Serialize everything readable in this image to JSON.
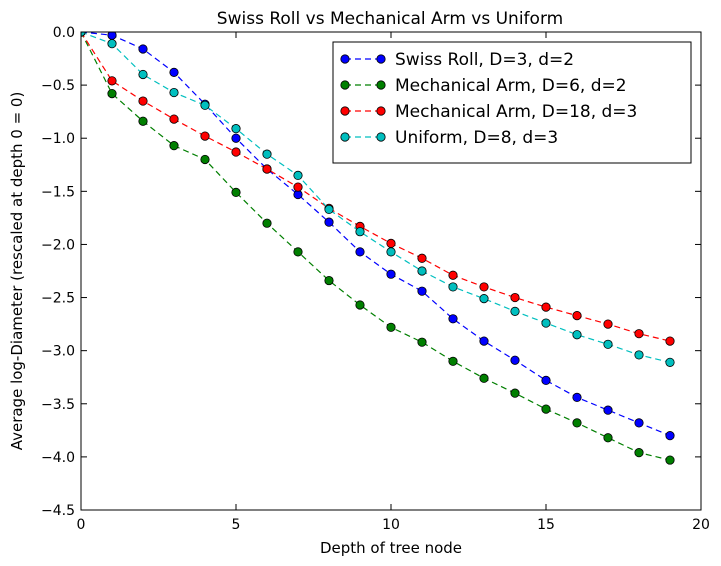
{
  "chart_data": {
    "type": "line",
    "title": "Swiss Roll vs Mechanical Arm vs Uniform",
    "xlabel": "Depth of tree node",
    "ylabel": "Average log-Diameter (rescaled at depth 0 = 0)",
    "xlim": [
      0,
      20
    ],
    "ylim": [
      -4.5,
      0.0
    ],
    "xticks": [
      0,
      5,
      10,
      15,
      20
    ],
    "yticks": [
      0.0,
      -0.5,
      -1.0,
      -1.5,
      -2.0,
      -2.5,
      -3.0,
      -3.5,
      -4.0,
      -4.5
    ],
    "xtick_labels": [
      "0",
      "5",
      "10",
      "15",
      "20"
    ],
    "ytick_labels": [
      "0.0",
      "−0.5",
      "−1.0",
      "−1.5",
      "−2.0",
      "−2.5",
      "−3.0",
      "−3.5",
      "−4.0",
      "−4.5"
    ],
    "grid": false,
    "legend_position": "top-right",
    "x": [
      0,
      1,
      2,
      3,
      4,
      5,
      6,
      7,
      8,
      9,
      10,
      11,
      12,
      13,
      14,
      15,
      16,
      17,
      18,
      19
    ],
    "series": [
      {
        "name": "Swiss Roll, D=3, d=2",
        "color": "#0000ff",
        "values": [
          0.0,
          -0.03,
          -0.16,
          -0.38,
          -0.68,
          -1.0,
          -1.29,
          -1.53,
          -1.79,
          -2.07,
          -2.28,
          -2.44,
          -2.7,
          -2.91,
          -3.09,
          -3.28,
          -3.44,
          -3.56,
          -3.68,
          -3.8
        ]
      },
      {
        "name": "Mechanical Arm, D=6, d=2",
        "color": "#007f00",
        "values": [
          0.0,
          -0.58,
          -0.84,
          -1.07,
          -1.2,
          -1.51,
          -1.8,
          -2.07,
          -2.34,
          -2.57,
          -2.78,
          -2.92,
          -3.1,
          -3.26,
          -3.4,
          -3.55,
          -3.68,
          -3.82,
          -3.96,
          -4.03
        ]
      },
      {
        "name": "Mechanical Arm, D=18, d=3",
        "color": "#ff0000",
        "values": [
          0.0,
          -0.46,
          -0.65,
          -0.82,
          -0.98,
          -1.13,
          -1.29,
          -1.46,
          -1.66,
          -1.83,
          -1.99,
          -2.13,
          -2.29,
          -2.4,
          -2.5,
          -2.59,
          -2.67,
          -2.75,
          -2.84,
          -2.91
        ]
      },
      {
        "name": "Uniform, D=8, d=3",
        "color": "#00bfbf",
        "values": [
          0.0,
          -0.11,
          -0.4,
          -0.57,
          -0.69,
          -0.91,
          -1.15,
          -1.35,
          -1.67,
          -1.88,
          -2.07,
          -2.25,
          -2.4,
          -2.51,
          -2.63,
          -2.74,
          -2.85,
          -2.94,
          -3.04,
          -3.11
        ]
      }
    ]
  }
}
